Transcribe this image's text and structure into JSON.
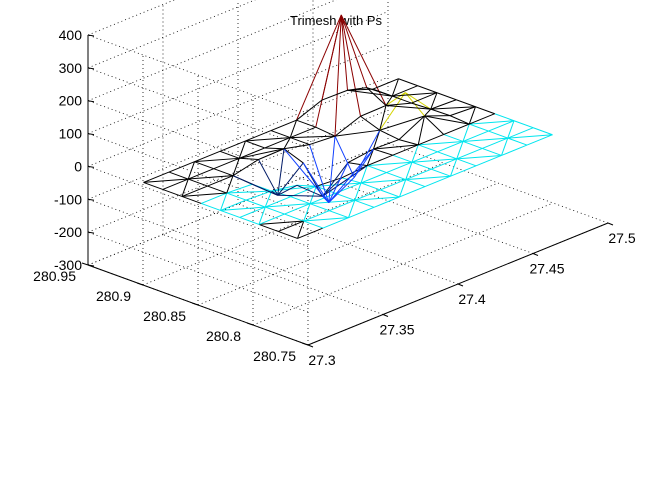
{
  "chart_data": {
    "type": "trimesh",
    "title": "Trimesh with Ps",
    "xlabel": "",
    "ylabel": "",
    "zlabel": "",
    "grid": true,
    "x_range": [
      27.3,
      27.5
    ],
    "y_range": [
      280.75,
      280.95
    ],
    "z_range": [
      -300,
      400
    ],
    "x_ticks": [
      "27.3",
      "27.35",
      "27.4",
      "27.45",
      "27.5"
    ],
    "y_ticks": [
      "280.75",
      "280.8",
      "280.85",
      "280.9",
      "280.95"
    ],
    "z_ticks": [
      "400",
      "300",
      "200",
      "100",
      "0",
      "-100",
      "-200",
      "-300"
    ],
    "mesh": {
      "x_min": 27.315,
      "x_max": 27.485,
      "y_min": 280.78,
      "y_max": 280.92,
      "nx": 11,
      "ny": 9,
      "base_z": -40,
      "peaks": [
        {
          "x": 27.442,
          "y": 280.905,
          "z": 270,
          "color": "#8b0000"
        },
        {
          "x": 27.375,
          "y": 280.875,
          "z": 90,
          "color": "#d4d400"
        },
        {
          "x": 27.405,
          "y": 280.86,
          "z": 30,
          "color": "#d4d400"
        },
        {
          "x": 27.445,
          "y": 280.87,
          "z": 40,
          "color": "#d4d400"
        },
        {
          "x": 27.455,
          "y": 280.855,
          "z": -5,
          "color": "#d4d400"
        }
      ],
      "dips": [
        {
          "x": 27.395,
          "y": 280.86,
          "z": -190
        },
        {
          "x": 27.42,
          "y": 280.865,
          "z": -150
        },
        {
          "x": 27.38,
          "y": 280.85,
          "z": -120
        },
        {
          "x": 27.365,
          "y": 280.86,
          "z": -110
        }
      ],
      "colors": {
        "base": "#000000",
        "low": "#00e5ee",
        "mid": "#1040ff",
        "dark": "#001a66",
        "peak_top": "#8b0000"
      }
    }
  }
}
